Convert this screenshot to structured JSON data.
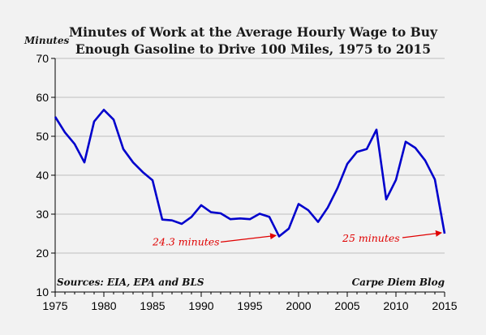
{
  "chart_data": {
    "type": "line",
    "title_lines": [
      "Minutes of Work at the Average Hourly Wage to Buy",
      "Enough Gasoline to Drive 100 Miles, 1975 to 2015"
    ],
    "ylabel": "Minutes",
    "xlabel": "",
    "xlim": [
      1975,
      2015
    ],
    "ylim": [
      10,
      70
    ],
    "x_ticks": [
      1975,
      1980,
      1985,
      1990,
      1995,
      2000,
      2005,
      2010,
      2015
    ],
    "y_ticks": [
      10,
      20,
      30,
      40,
      50,
      60,
      70
    ],
    "grid": "horizontal",
    "series": [
      {
        "color": "#0000cc",
        "x": [
          1975,
          1976,
          1977,
          1978,
          1979,
          1980,
          1981,
          1982,
          1983,
          1984,
          1985,
          1986,
          1987,
          1988,
          1989,
          1990,
          1991,
          1992,
          1993,
          1994,
          1995,
          1996,
          1997,
          1998,
          1999,
          2000,
          2001,
          2002,
          2003,
          2004,
          2005,
          2006,
          2007,
          2008,
          2009,
          2010,
          2011,
          2012,
          2013,
          2014,
          2015
        ],
        "values": [
          55,
          51,
          48,
          43.3,
          53.8,
          56.8,
          54.3,
          46.7,
          43.3,
          40.8,
          38.7,
          28.6,
          28.4,
          27.5,
          29.3,
          32.3,
          30.5,
          30.2,
          28.7,
          28.9,
          28.7,
          30.1,
          29.3,
          24.3,
          26.3,
          32.6,
          31,
          28,
          31.7,
          36.7,
          42.9,
          46,
          46.7,
          51.7,
          33.8,
          38.8,
          48.6,
          47,
          43.8,
          38.9,
          25
        ]
      }
    ],
    "annotations": [
      {
        "text": "24.3 minutes",
        "x": 1998,
        "y": 24.3
      },
      {
        "text": "25 minutes",
        "x": 2015,
        "y": 25
      }
    ],
    "sources_note": "Sources: EIA, EPA and BLS",
    "credit": "Carpe Diem Blog"
  },
  "colors": {
    "background": "#f2f2f2",
    "line": "#0000cc",
    "annotation": "#e00000",
    "grid": "#bfbfbf"
  }
}
